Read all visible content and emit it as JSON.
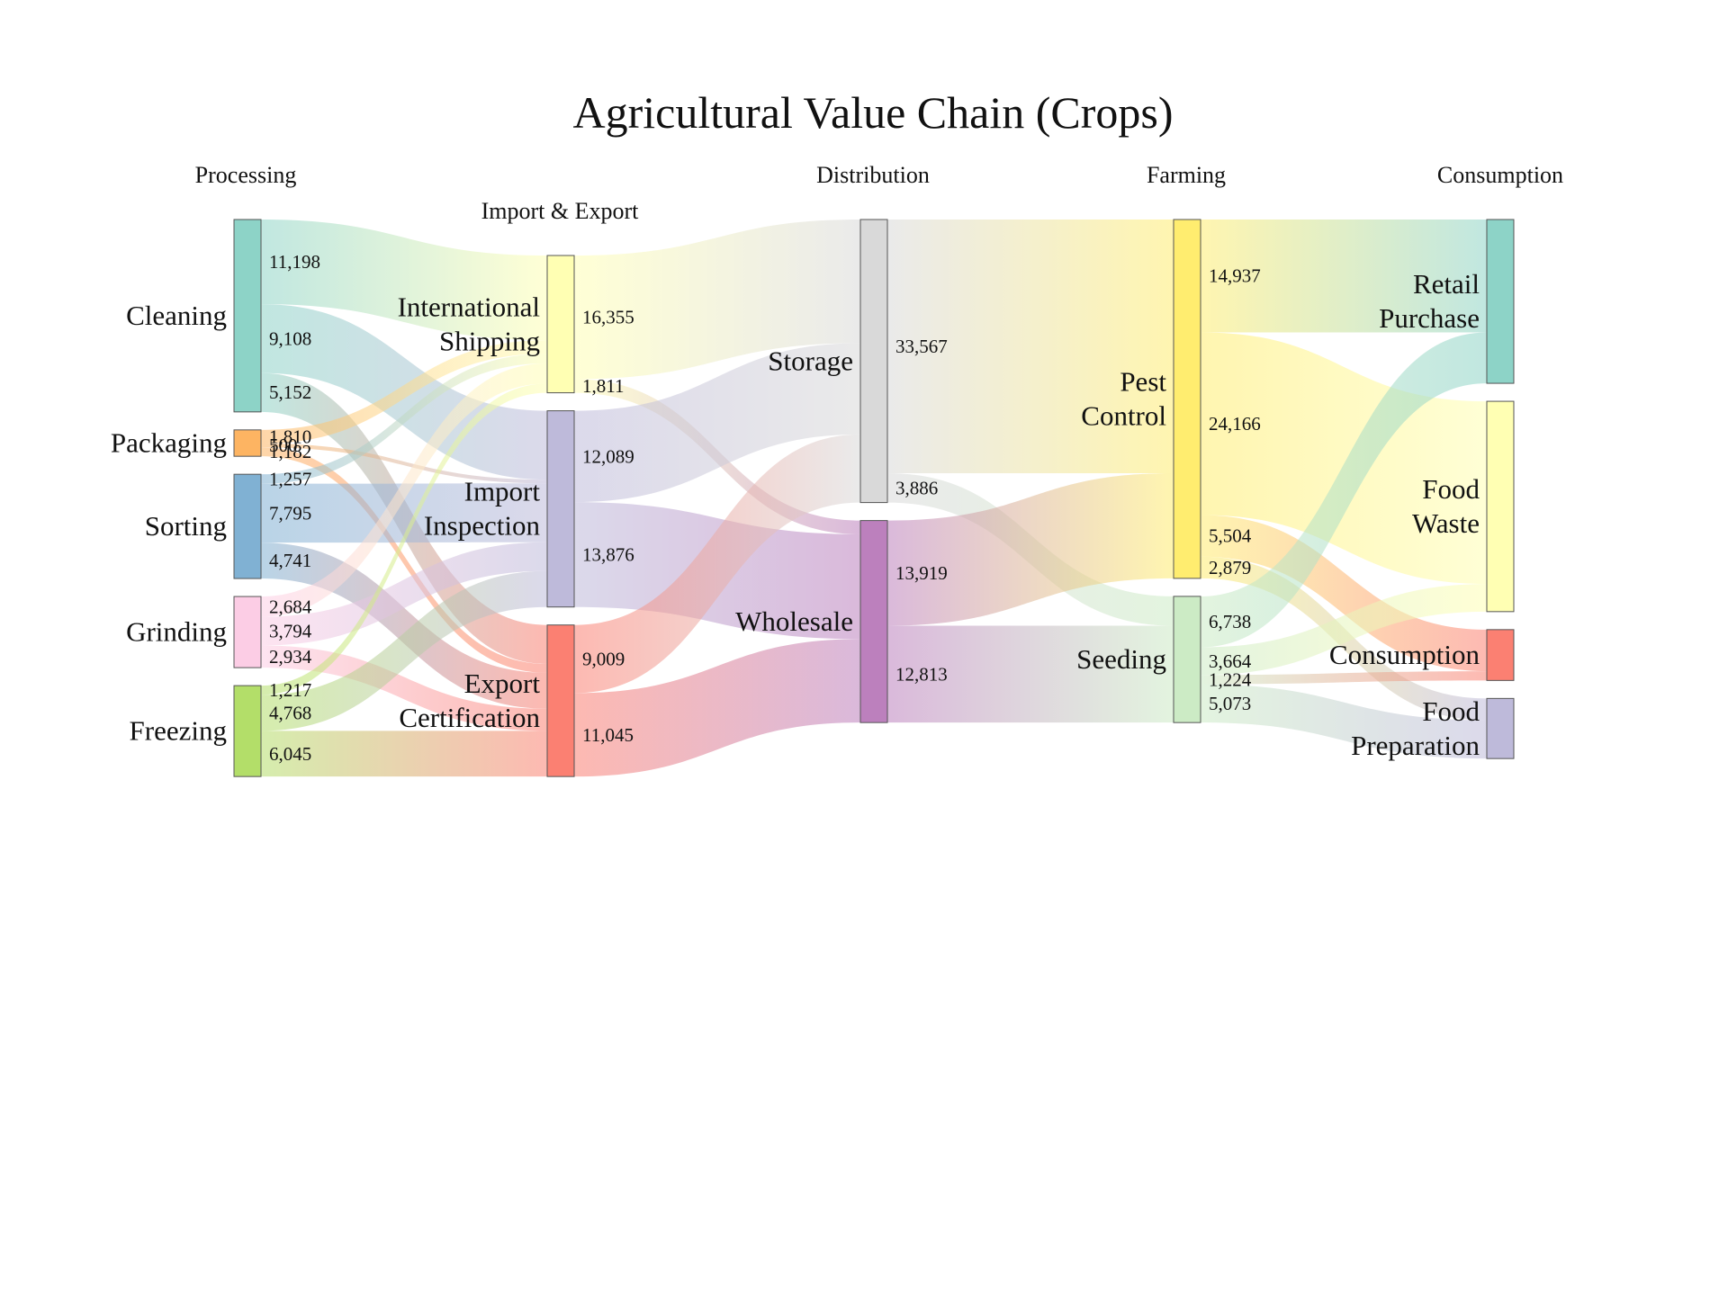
{
  "chart_data": {
    "type": "sankey",
    "title": "Agricultural Value Chain (Crops)",
    "stages": [
      {
        "id": "processing",
        "label": "Processing"
      },
      {
        "id": "import_export",
        "label": "Import & Export"
      },
      {
        "id": "distribution",
        "label": "Distribution"
      },
      {
        "id": "farming",
        "label": "Farming"
      },
      {
        "id": "consumption_stage",
        "label": "Consumption"
      }
    ],
    "nodes": [
      {
        "id": "cleaning",
        "label": "Cleaning",
        "stage": "processing",
        "color": "#8dd3c7"
      },
      {
        "id": "packaging",
        "label": "Packaging",
        "stage": "processing",
        "color": "#fdb462"
      },
      {
        "id": "sorting",
        "label": "Sorting",
        "stage": "processing",
        "color": "#80b1d3"
      },
      {
        "id": "grinding",
        "label": "Grinding",
        "stage": "processing",
        "color": "#fccde5"
      },
      {
        "id": "freezing",
        "label": "Freezing",
        "stage": "processing",
        "color": "#b3de69"
      },
      {
        "id": "intl_shipping",
        "label": "International Shipping",
        "stage": "import_export",
        "color": "#ffffb3"
      },
      {
        "id": "import_inspection",
        "label": "Import Inspection",
        "stage": "import_export",
        "color": "#bebada"
      },
      {
        "id": "export_cert",
        "label": "Export Certification",
        "stage": "import_export",
        "color": "#fb8072"
      },
      {
        "id": "storage",
        "label": "Storage",
        "stage": "distribution",
        "color": "#d9d9d9"
      },
      {
        "id": "wholesale",
        "label": "Wholesale",
        "stage": "distribution",
        "color": "#bc80bd"
      },
      {
        "id": "pest_control",
        "label": "Pest Control",
        "stage": "farming",
        "color": "#ffed6f"
      },
      {
        "id": "seeding",
        "label": "Seeding",
        "stage": "farming",
        "color": "#ccebc5"
      },
      {
        "id": "retail_purchase",
        "label": "Retail Purchase",
        "stage": "consumption_stage",
        "color": "#8dd3c7"
      },
      {
        "id": "food_waste",
        "label": "Food Waste",
        "stage": "consumption_stage",
        "color": "#ffffb3"
      },
      {
        "id": "consumption",
        "label": "Consumption",
        "stage": "consumption_stage",
        "color": "#fb8072"
      },
      {
        "id": "food_preparation",
        "label": "Food Preparation",
        "stage": "consumption_stage",
        "color": "#bebada"
      }
    ],
    "links": [
      {
        "source": "cleaning",
        "target": "intl_shipping",
        "value": 11198,
        "label": "11,198"
      },
      {
        "source": "cleaning",
        "target": "import_inspection",
        "value": 9108,
        "label": "9,108"
      },
      {
        "source": "cleaning",
        "target": "export_cert",
        "value": 5152,
        "label": "5,152"
      },
      {
        "source": "packaging",
        "target": "intl_shipping",
        "value": 1810,
        "label": "1,810"
      },
      {
        "source": "packaging",
        "target": "import_inspection",
        "value": 500,
        "label": "500"
      },
      {
        "source": "packaging",
        "target": "export_cert",
        "value": 1182,
        "label": "1,182"
      },
      {
        "source": "sorting",
        "target": "intl_shipping",
        "value": 1257,
        "label": "1,257"
      },
      {
        "source": "sorting",
        "target": "import_inspection",
        "value": 7795,
        "label": "7,795"
      },
      {
        "source": "sorting",
        "target": "export_cert",
        "value": 4741,
        "label": "4,741"
      },
      {
        "source": "grinding",
        "target": "intl_shipping",
        "value": 2684,
        "label": "2,684"
      },
      {
        "source": "grinding",
        "target": "import_inspection",
        "value": 3794,
        "label": "3,794"
      },
      {
        "source": "grinding",
        "target": "export_cert",
        "value": 2934,
        "label": "2,934"
      },
      {
        "source": "freezing",
        "target": "intl_shipping",
        "value": 1217,
        "label": "1,217"
      },
      {
        "source": "freezing",
        "target": "import_inspection",
        "value": 4768,
        "label": "4,768"
      },
      {
        "source": "freezing",
        "target": "export_cert",
        "value": 6045,
        "label": "6,045"
      },
      {
        "source": "intl_shipping",
        "target": "storage",
        "value": 16355,
        "label": "16,355"
      },
      {
        "source": "intl_shipping",
        "target": "wholesale",
        "value": 1811,
        "label": "1,811"
      },
      {
        "source": "import_inspection",
        "target": "storage",
        "value": 12089,
        "label": "12,089"
      },
      {
        "source": "import_inspection",
        "target": "wholesale",
        "value": 13876,
        "label": "13,876"
      },
      {
        "source": "export_cert",
        "target": "storage",
        "value": 9009,
        "label": "9,009"
      },
      {
        "source": "export_cert",
        "target": "wholesale",
        "value": 11045,
        "label": "11,045"
      },
      {
        "source": "storage",
        "target": "pest_control",
        "value": 33567,
        "label": "33,567"
      },
      {
        "source": "storage",
        "target": "seeding",
        "value": 3886,
        "label": "3,886"
      },
      {
        "source": "wholesale",
        "target": "pest_control",
        "value": 13919,
        "label": "13,919"
      },
      {
        "source": "wholesale",
        "target": "seeding",
        "value": 12813,
        "label": "12,813"
      },
      {
        "source": "pest_control",
        "target": "retail_purchase",
        "value": 14937,
        "label": "14,937"
      },
      {
        "source": "pest_control",
        "target": "food_waste",
        "value": 24166,
        "label": "24,166"
      },
      {
        "source": "pest_control",
        "target": "consumption",
        "value": 5504,
        "label": "5,504"
      },
      {
        "source": "pest_control",
        "target": "food_preparation",
        "value": 2879,
        "label": "2,879"
      },
      {
        "source": "seeding",
        "target": "retail_purchase",
        "value": 6738,
        "label": "6,738"
      },
      {
        "source": "seeding",
        "target": "food_waste",
        "value": 3664,
        "label": "3,664"
      },
      {
        "source": "seeding",
        "target": "consumption",
        "value": 1224,
        "label": "1,224"
      },
      {
        "source": "seeding",
        "target": "food_preparation",
        "value": 5073,
        "label": "5,073"
      }
    ]
  }
}
